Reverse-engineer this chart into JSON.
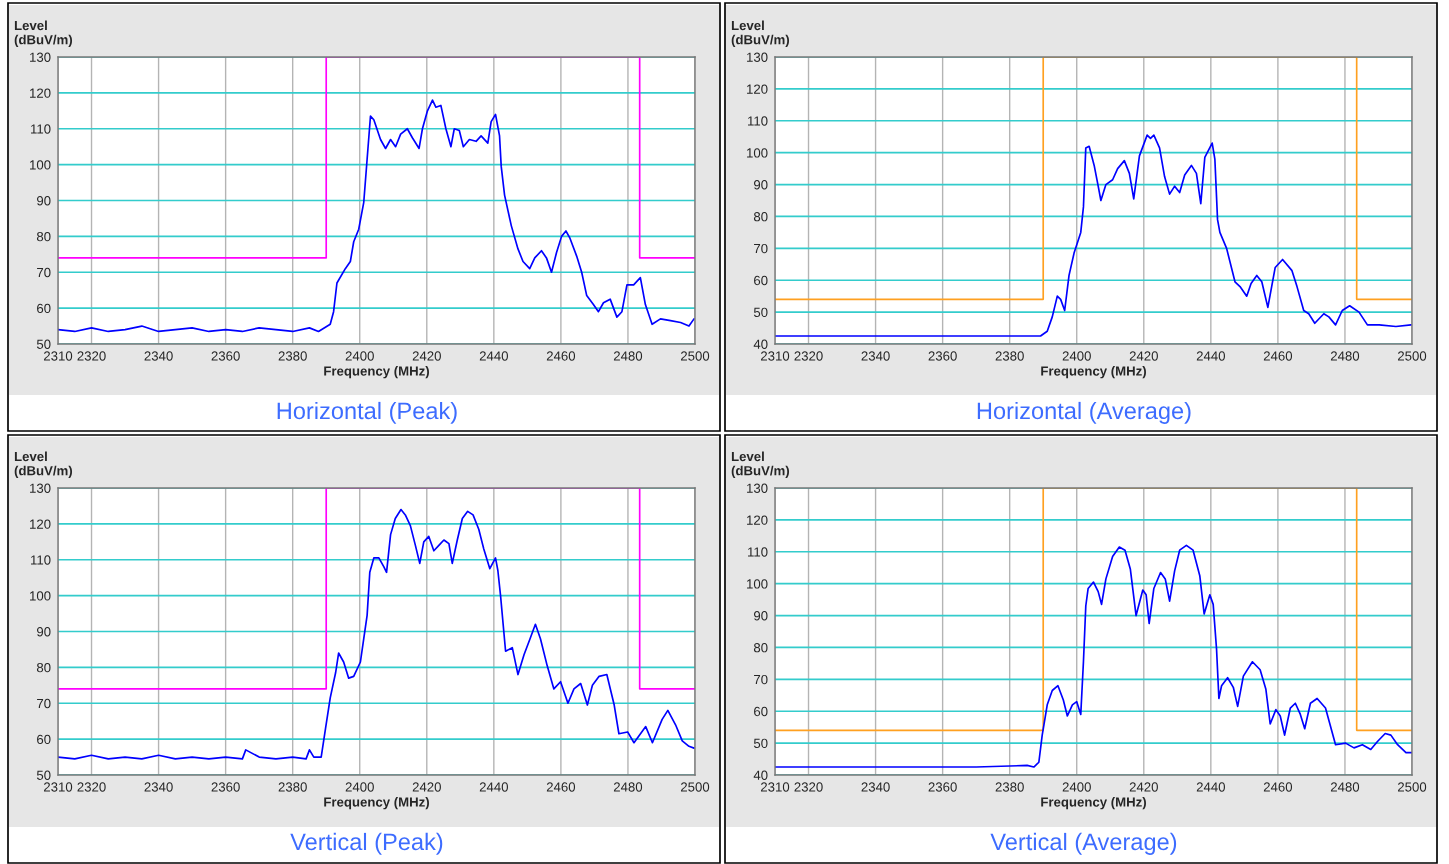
{
  "chart_data": [
    {
      "type": "line",
      "title": "Horizontal (Peak)",
      "xlabel": "Frequency (MHz)",
      "ylabel": "Level\n(dBuV/m)",
      "xlim": [
        2310,
        2500
      ],
      "xticks": [
        2310,
        2320,
        2340,
        2360,
        2380,
        2400,
        2420,
        2440,
        2460,
        2480,
        2500
      ],
      "ylim": [
        50,
        130
      ],
      "yticks": [
        50,
        60,
        70,
        80,
        90,
        100,
        110,
        120,
        130
      ],
      "grid": true,
      "series": [
        {
          "type": "step",
          "color": "#ff00ff",
          "x": [
            2310,
            2390,
            2483.5,
            2500
          ],
          "values": [
            74,
            130,
            74,
            74
          ]
        },
        {
          "type": "line",
          "color": "#0000ff",
          "x": [
            2310,
            2315,
            2320,
            2325,
            2330,
            2335,
            2340,
            2345,
            2350,
            2355,
            2360,
            2365,
            2370,
            2375,
            2380,
            2385,
            2387.7,
            2391.2,
            2392.2,
            2393.2,
            2395.7,
            2397.2,
            2398.2,
            2399.7,
            2401.2,
            2402.2,
            2403.2,
            2404.2,
            2406.2,
            2407.7,
            2409.2,
            2410.7,
            2412.2,
            2414.2,
            2415.7,
            2417.7,
            2418.7,
            2420.2,
            2421.7,
            2422.7,
            2424.2,
            2425.7,
            2427.2,
            2428.2,
            2429.7,
            2430.9,
            2432.7,
            2434.7,
            2436.2,
            2438.2,
            2439.2,
            2440.5,
            2441.7,
            2442.2,
            2443.2,
            2445.2,
            2447.2,
            2448.7,
            2450.7,
            2452.2,
            2454.2,
            2455.7,
            2457.2,
            2458.7,
            2460.2,
            2461.5,
            2462.7,
            2464.7,
            2466.2,
            2467.7,
            2469.7,
            2471.2,
            2472.7,
            2474.7,
            2476.7,
            2478.2,
            2479.7,
            2481.7,
            2483.7,
            2485.2,
            2487.2,
            2489.7,
            2492.7,
            2495.7,
            2498.2,
            2499.7
          ],
          "values": [
            54,
            53.5,
            54.5,
            53.5,
            54,
            55,
            53.5,
            54,
            54.5,
            53.5,
            54,
            53.5,
            54.5,
            54,
            53.5,
            54.5,
            53.5,
            55.5,
            59,
            67,
            71,
            73,
            78.5,
            82,
            89.5,
            101.5,
            113.5,
            112.5,
            107,
            104.5,
            107,
            105,
            108.5,
            110,
            107.5,
            104.5,
            110,
            115,
            118,
            116,
            116.5,
            110,
            105,
            110,
            109.5,
            105,
            107,
            106.5,
            108,
            106,
            112,
            114,
            108,
            99.5,
            91.5,
            83,
            76.5,
            73,
            71,
            74,
            76,
            74,
            70,
            75.5,
            80,
            81.5,
            79.5,
            74.5,
            70,
            63.5,
            61,
            59,
            61.5,
            62.5,
            57.5,
            59,
            66.5,
            66.5,
            68.5,
            61,
            55.5,
            57,
            56.5,
            56,
            55,
            57
          ]
        }
      ]
    },
    {
      "type": "line",
      "title": "Horizontal (Average)",
      "xlabel": "Frequency (MHz)",
      "ylabel": "Level\n(dBuV/m)",
      "xlim": [
        2310,
        2500
      ],
      "xticks": [
        2310,
        2320,
        2340,
        2360,
        2380,
        2400,
        2420,
        2440,
        2460,
        2480,
        2500
      ],
      "ylim": [
        40,
        130
      ],
      "yticks": [
        40,
        50,
        60,
        70,
        80,
        90,
        100,
        110,
        120,
        130
      ],
      "grid": true,
      "series": [
        {
          "type": "step",
          "color": "#ffa020",
          "x": [
            2310,
            2390,
            2483.5,
            2500
          ],
          "values": [
            54,
            130,
            54,
            54
          ]
        },
        {
          "type": "line",
          "color": "#0000ff",
          "x": [
            2310,
            2330,
            2350,
            2370,
            2385.2,
            2389.2,
            2391.2,
            2392.7,
            2394.2,
            2395.2,
            2396.4,
            2397.7,
            2399.2,
            2401.2,
            2402,
            2402.7,
            2403.7,
            2405.2,
            2406.4,
            2407.2,
            2408.7,
            2410.7,
            2412.2,
            2414.2,
            2415.7,
            2417,
            2418.7,
            2421,
            2422,
            2423,
            2424.7,
            2426.2,
            2427.7,
            2429.2,
            2430.7,
            2432.2,
            2434.2,
            2435.7,
            2437,
            2438.2,
            2440.4,
            2441.2,
            2442,
            2442.7,
            2444.7,
            2447.2,
            2448.7,
            2450.7,
            2452,
            2453.7,
            2455.2,
            2457,
            2459.2,
            2461.4,
            2464.2,
            2465.7,
            2467.7,
            2469.2,
            2471,
            2473.7,
            2475.2,
            2477.2,
            2479.2,
            2481.4,
            2484.2,
            2486.7,
            2490.2,
            2495.2,
            2499.7
          ],
          "values": [
            42.5,
            42.5,
            42.5,
            42.5,
            42.5,
            42.5,
            44,
            48.5,
            55,
            54,
            50.5,
            61.5,
            68.5,
            75,
            83,
            101.5,
            102,
            96,
            89.5,
            85,
            90,
            91.5,
            95,
            97.5,
            93.5,
            85.5,
            99,
            105.5,
            104.5,
            105.5,
            101.5,
            92.5,
            87,
            89.5,
            87.5,
            93,
            96,
            93.5,
            84,
            98.5,
            103,
            98,
            79,
            75,
            70,
            59.5,
            58,
            55,
            59,
            61.5,
            59.5,
            51.5,
            64,
            66.5,
            63,
            58,
            50.5,
            49.5,
            46.5,
            49.5,
            48.5,
            46,
            50.5,
            52,
            50,
            46,
            46,
            45.5,
            46
          ]
        }
      ]
    },
    {
      "type": "line",
      "title": "Vertical (Peak)",
      "xlabel": "Frequency (MHz)",
      "ylabel": "Level\n(dBuV/m)",
      "xlim": [
        2310,
        2500
      ],
      "xticks": [
        2310,
        2320,
        2340,
        2360,
        2380,
        2400,
        2420,
        2440,
        2460,
        2480,
        2500
      ],
      "ylim": [
        50,
        130
      ],
      "yticks": [
        50,
        60,
        70,
        80,
        90,
        100,
        110,
        120,
        130
      ],
      "grid": true,
      "series": [
        {
          "type": "step",
          "color": "#ff00ff",
          "x": [
            2310,
            2390,
            2483.5,
            2500
          ],
          "values": [
            74,
            130,
            74,
            74
          ]
        },
        {
          "type": "line",
          "color": "#0000ff",
          "x": [
            2310,
            2315,
            2320,
            2325,
            2330,
            2335,
            2340,
            2345,
            2350,
            2355,
            2360,
            2365,
            2366,
            2370,
            2375,
            2380,
            2384,
            2385,
            2386.3,
            2388.5,
            2389.8,
            2391.2,
            2392.8,
            2393.7,
            2395.2,
            2396.7,
            2398.2,
            2400.2,
            2401.2,
            2402.2,
            2403,
            2404.2,
            2405.7,
            2407.2,
            2408,
            2409.2,
            2410.6,
            2412.3,
            2413.6,
            2415.1,
            2416.6,
            2417.9,
            2419.1,
            2420.6,
            2422.1,
            2423.6,
            2425.1,
            2426.6,
            2427.6,
            2429.1,
            2430.6,
            2432.2,
            2433.8,
            2435.5,
            2437,
            2438.8,
            2440.5,
            2441.2,
            2442,
            2443.5,
            2445.5,
            2447.2,
            2449,
            2450.8,
            2452.4,
            2453.9,
            2455.9,
            2457.9,
            2459.9,
            2462.1,
            2463.9,
            2465.9,
            2467.9,
            2469.4,
            2471.4,
            2473.7,
            2475.9,
            2477.3,
            2479.9,
            2481.8,
            2485.3,
            2487.3,
            2490.2,
            2491.9,
            2494.2,
            2496.2,
            2498.2,
            2499.7
          ],
          "values": [
            55,
            54.5,
            55.5,
            54.5,
            55,
            54.5,
            55.5,
            54.5,
            55,
            54.5,
            55,
            54.5,
            57,
            55,
            54.5,
            55,
            54.5,
            57,
            55,
            55,
            63,
            71.5,
            78.5,
            84,
            81.5,
            77,
            77.5,
            81.5,
            88,
            94.5,
            106.5,
            110.5,
            110.5,
            108,
            106.5,
            117,
            121.5,
            124,
            122.5,
            119.5,
            114,
            109,
            115,
            116.5,
            112.5,
            114,
            115.5,
            114.5,
            109,
            115.5,
            121.5,
            123.5,
            122.5,
            118.5,
            113,
            107.5,
            110.5,
            107,
            100,
            84.5,
            85.5,
            78,
            83.5,
            88,
            92,
            88,
            80.5,
            74,
            76,
            70,
            74,
            75.5,
            69.5,
            75,
            77.5,
            78,
            69.5,
            61.5,
            62,
            59,
            63.5,
            59,
            65.5,
            68,
            64,
            59.5,
            58,
            57.5
          ]
        }
      ]
    },
    {
      "type": "line",
      "title": "Vertical (Average)",
      "xlabel": "Frequency (MHz)",
      "ylabel": "Level\n(dBuV/m)",
      "xlim": [
        2310,
        2500
      ],
      "xticks": [
        2310,
        2320,
        2340,
        2360,
        2380,
        2400,
        2420,
        2440,
        2460,
        2480,
        2500
      ],
      "ylim": [
        40,
        130
      ],
      "yticks": [
        40,
        50,
        60,
        70,
        80,
        90,
        100,
        110,
        120,
        130
      ],
      "grid": true,
      "series": [
        {
          "type": "step",
          "color": "#ffa020",
          "x": [
            2310,
            2390,
            2483.5,
            2500
          ],
          "values": [
            54,
            130,
            54,
            54
          ]
        },
        {
          "type": "line",
          "color": "#0000ff",
          "x": [
            2310,
            2330,
            2350,
            2370,
            2385.2,
            2387.2,
            2388.7,
            2389.7,
            2391.2,
            2392.7,
            2394.4,
            2396,
            2397.2,
            2398.7,
            2400,
            2401.2,
            2402,
            2402.7,
            2403.4,
            2405,
            2406.4,
            2407.4,
            2408.7,
            2410.7,
            2412.7,
            2414.4,
            2416,
            2417.7,
            2419.7,
            2420.7,
            2421.6,
            2423,
            2425,
            2426.4,
            2427.7,
            2429.2,
            2430.7,
            2432.7,
            2434.7,
            2436.7,
            2438,
            2439.7,
            2440.7,
            2441.7,
            2442.4,
            2443.2,
            2445,
            2446.7,
            2448,
            2449.7,
            2452.4,
            2454.7,
            2456.4,
            2457.7,
            2459.4,
            2460.7,
            2462,
            2463.7,
            2465.2,
            2466.7,
            2468,
            2469.7,
            2471.7,
            2474.2,
            2477.2,
            2480.2,
            2482.7,
            2485.2,
            2487.7,
            2489.7,
            2492,
            2493.7,
            2495.7,
            2498.2,
            2500
          ],
          "values": [
            42.5,
            42.5,
            42.5,
            42.5,
            43,
            42.5,
            44,
            52.5,
            62,
            66.5,
            68,
            63.5,
            58.5,
            62,
            63,
            59,
            75.5,
            93,
            98.5,
            100.5,
            97.5,
            93.5,
            101.5,
            108.5,
            111.5,
            110.5,
            104.5,
            90,
            98,
            96.5,
            87.5,
            98.5,
            103.5,
            101.5,
            94.5,
            104,
            110.5,
            112,
            110.5,
            102.5,
            90.5,
            96.5,
            93.5,
            79.5,
            64,
            68,
            70.5,
            67.5,
            61.5,
            71,
            75.5,
            73,
            67,
            56,
            60.5,
            58.5,
            52.5,
            61,
            62.5,
            59,
            54.5,
            62.5,
            64,
            61,
            49.5,
            50,
            48.5,
            49.5,
            48,
            50.5,
            53,
            52.5,
            49.5,
            47,
            47
          ]
        }
      ]
    }
  ]
}
